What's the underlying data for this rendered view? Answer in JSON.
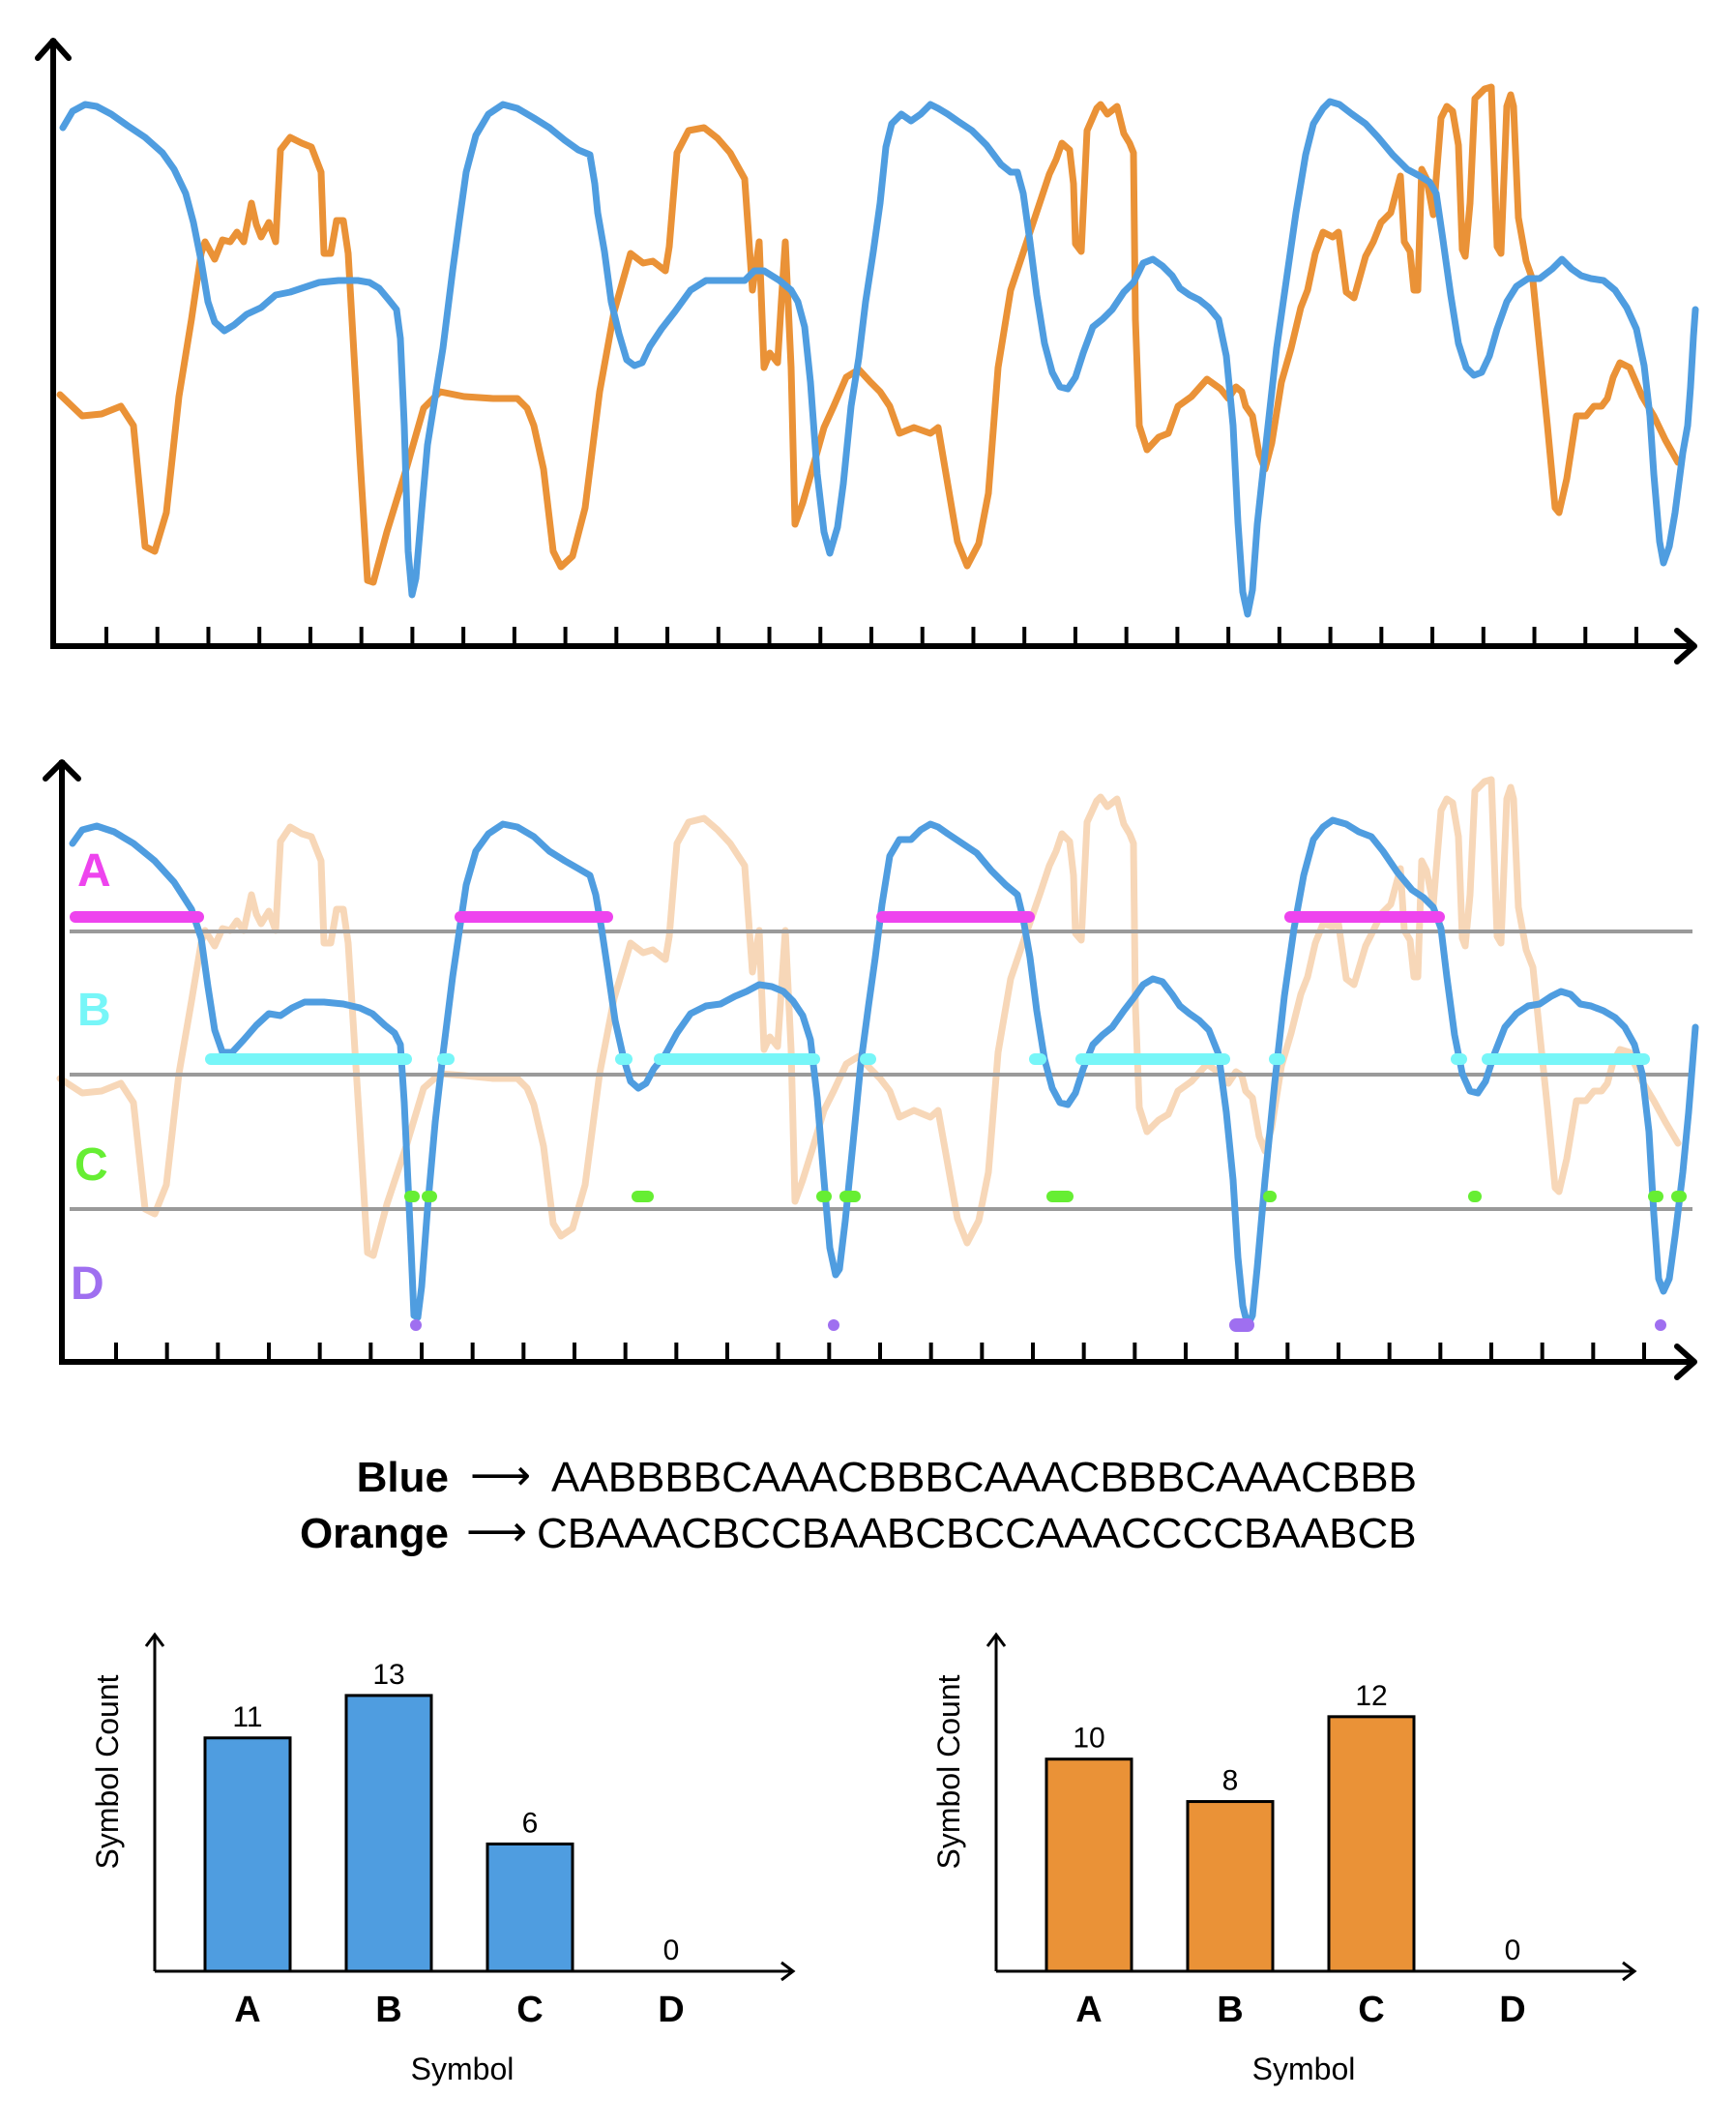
{
  "colors": {
    "blue": "#4f9de0",
    "orange": "#ea9237",
    "orange_faded": "#f7d7b8",
    "axis": "#000000",
    "grid": "#9a9a9a",
    "A": "#ee44ee",
    "B": "#77f6f8",
    "C": "#66ee33",
    "D": "#9f6ff0"
  },
  "top_panel": {
    "x_ticks": 31
  },
  "symbol_panel": {
    "labels": [
      "A",
      "B",
      "C",
      "D"
    ],
    "x_ticks": 31
  },
  "sequences": [
    {
      "name": "Blue",
      "arrow": "⟶",
      "symbols": "AABBBBCAAACBBBCAAACBBBCAAACBBB"
    },
    {
      "name": "Orange",
      "arrow": "⟶",
      "symbols": "CBAAACBCCBAABCBCCAAACCCCBAABCB"
    }
  ],
  "chart_data": [
    {
      "type": "bar",
      "title": "",
      "xlabel": "Symbol",
      "ylabel": "Symbol Count",
      "categories": [
        "A",
        "B",
        "C",
        "D"
      ],
      "values": [
        11,
        13,
        6,
        0
      ],
      "ylim": [
        0,
        14.5
      ],
      "color": "#4f9de0"
    },
    {
      "type": "bar",
      "title": "",
      "xlabel": "Symbol",
      "ylabel": "Symbol Count",
      "categories": [
        "A",
        "B",
        "C",
        "D"
      ],
      "values": [
        10,
        8,
        12,
        0
      ],
      "ylim": [
        0,
        14.5
      ],
      "color": "#ea9237"
    }
  ]
}
